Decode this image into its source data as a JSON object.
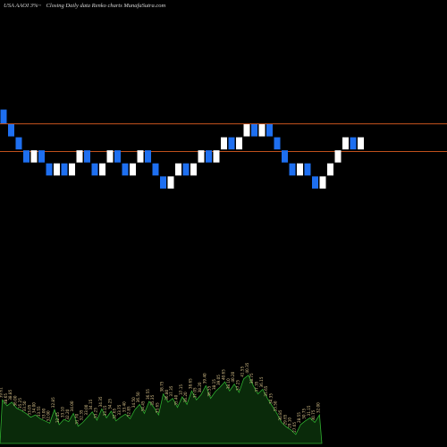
{
  "header": {
    "symbol": "USA AAOI 3%~",
    "description": "Closing Daily data Renko charts MunafaSutra.com"
  },
  "chart_data": {
    "type": "renko",
    "colors": {
      "background": "#000000",
      "up_brick": "#ffffff",
      "down_brick": "#1e6ff0",
      "level_line": "#c0501c",
      "volume_fill": "#0a2a0a",
      "volume_stroke": "#2fae2f",
      "volume_label": "#d8c28a"
    },
    "levels": [
      35.6,
      33.9
    ],
    "price_range": [
      24.0,
      41.0
    ],
    "bricks": [
      {
        "dir": "down",
        "open": 36.5,
        "close": 35.6
      },
      {
        "dir": "down",
        "open": 35.6,
        "close": 34.8
      },
      {
        "dir": "down",
        "open": 34.8,
        "close": 34.0
      },
      {
        "dir": "down",
        "open": 34.0,
        "close": 33.2
      },
      {
        "dir": "up",
        "open": 33.2,
        "close": 34.0
      },
      {
        "dir": "down",
        "open": 34.0,
        "close": 33.2
      },
      {
        "dir": "down",
        "open": 33.2,
        "close": 32.4
      },
      {
        "dir": "up",
        "open": 32.4,
        "close": 33.2
      },
      {
        "dir": "down",
        "open": 33.2,
        "close": 32.4
      },
      {
        "dir": "up",
        "open": 32.4,
        "close": 33.2
      },
      {
        "dir": "up",
        "open": 33.2,
        "close": 34.0
      },
      {
        "dir": "down",
        "open": 34.0,
        "close": 33.2
      },
      {
        "dir": "down",
        "open": 33.2,
        "close": 32.4
      },
      {
        "dir": "up",
        "open": 32.4,
        "close": 33.2
      },
      {
        "dir": "up",
        "open": 33.2,
        "close": 34.0
      },
      {
        "dir": "down",
        "open": 34.0,
        "close": 33.2
      },
      {
        "dir": "down",
        "open": 33.2,
        "close": 32.4
      },
      {
        "dir": "up",
        "open": 32.4,
        "close": 33.2
      },
      {
        "dir": "up",
        "open": 33.2,
        "close": 34.0
      },
      {
        "dir": "down",
        "open": 34.0,
        "close": 33.2
      },
      {
        "dir": "down",
        "open": 33.2,
        "close": 32.4
      },
      {
        "dir": "down",
        "open": 32.4,
        "close": 31.6
      },
      {
        "dir": "up",
        "open": 31.6,
        "close": 32.4
      },
      {
        "dir": "up",
        "open": 32.4,
        "close": 33.2
      },
      {
        "dir": "down",
        "open": 33.2,
        "close": 32.4
      },
      {
        "dir": "up",
        "open": 32.4,
        "close": 33.2
      },
      {
        "dir": "up",
        "open": 33.2,
        "close": 34.0
      },
      {
        "dir": "down",
        "open": 34.0,
        "close": 33.2
      },
      {
        "dir": "up",
        "open": 33.2,
        "close": 34.0
      },
      {
        "dir": "up",
        "open": 34.0,
        "close": 34.8
      },
      {
        "dir": "down",
        "open": 34.8,
        "close": 34.0
      },
      {
        "dir": "up",
        "open": 34.0,
        "close": 34.8
      },
      {
        "dir": "up",
        "open": 34.8,
        "close": 35.6
      },
      {
        "dir": "down",
        "open": 35.6,
        "close": 34.8
      },
      {
        "dir": "up",
        "open": 34.8,
        "close": 35.6
      },
      {
        "dir": "down",
        "open": 35.6,
        "close": 34.8
      },
      {
        "dir": "down",
        "open": 34.8,
        "close": 34.0
      },
      {
        "dir": "down",
        "open": 34.0,
        "close": 33.2
      },
      {
        "dir": "down",
        "open": 33.2,
        "close": 32.4
      },
      {
        "dir": "up",
        "open": 32.4,
        "close": 33.2
      },
      {
        "dir": "down",
        "open": 33.2,
        "close": 32.4
      },
      {
        "dir": "down",
        "open": 32.4,
        "close": 31.6
      },
      {
        "dir": "up",
        "open": 31.6,
        "close": 32.4
      },
      {
        "dir": "up",
        "open": 32.4,
        "close": 33.2
      },
      {
        "dir": "up",
        "open": 33.2,
        "close": 34.0
      },
      {
        "dir": "up",
        "open": 34.0,
        "close": 34.8
      },
      {
        "dir": "down",
        "open": 34.8,
        "close": 34.0
      },
      {
        "dir": "up",
        "open": 34.0,
        "close": 34.8
      }
    ],
    "volume": {
      "bars": [
        {
          "value": 0.58,
          "label": "39.61"
        },
        {
          "value": 0.5,
          "label": "38.65"
        },
        {
          "value": 0.55,
          "label": "38.85"
        },
        {
          "value": 0.47,
          "label": "36.00"
        },
        {
          "value": 0.44,
          "label": "35.25"
        },
        {
          "value": 0.4,
          "label": "33.50"
        },
        {
          "value": 0.35,
          "label": "33.05"
        },
        {
          "value": 0.38,
          "label": "34.00"
        },
        {
          "value": 0.33,
          "label": "33.55"
        },
        {
          "value": 0.3,
          "label": "33.00"
        },
        {
          "value": 0.27,
          "label": "32.00"
        },
        {
          "value": 0.45,
          "label": "32.85"
        },
        {
          "value": 0.25,
          "label": "32.45"
        },
        {
          "value": 0.32,
          "label": "33.10"
        },
        {
          "value": 0.29,
          "label": "32.20"
        },
        {
          "value": 0.4,
          "label": "34.00"
        },
        {
          "value": 0.23,
          "label": "31.70"
        },
        {
          "value": 0.28,
          "label": "32.35"
        },
        {
          "value": 0.35,
          "label": "33.00"
        },
        {
          "value": 0.42,
          "label": "34.15"
        },
        {
          "value": 0.31,
          "label": "33.25"
        },
        {
          "value": 0.46,
          "label": "34.35"
        },
        {
          "value": 0.34,
          "label": "33.15"
        },
        {
          "value": 0.43,
          "label": "34.25"
        },
        {
          "value": 0.3,
          "label": "32.65"
        },
        {
          "value": 0.35,
          "label": "33.75"
        },
        {
          "value": 0.39,
          "label": "33.40"
        },
        {
          "value": 0.33,
          "label": "32.85"
        },
        {
          "value": 0.45,
          "label": "34.50"
        },
        {
          "value": 0.52,
          "label": "36.50"
        },
        {
          "value": 0.4,
          "label": "34.45"
        },
        {
          "value": 0.56,
          "label": "36.55"
        },
        {
          "value": 0.48,
          "label": "35.35"
        },
        {
          "value": 0.38,
          "label": "33.65"
        },
        {
          "value": 0.66,
          "label": "38.75"
        },
        {
          "value": 0.55,
          "label": "36.80"
        },
        {
          "value": 0.6,
          "label": "37.35"
        },
        {
          "value": 0.48,
          "label": "35.40"
        },
        {
          "value": 0.62,
          "label": "37.15"
        },
        {
          "value": 0.52,
          "label": "36.20"
        },
        {
          "value": 0.7,
          "label": "38.65"
        },
        {
          "value": 0.58,
          "label": "37.05"
        },
        {
          "value": 0.65,
          "label": "38.20"
        },
        {
          "value": 0.77,
          "label": "39.40"
        },
        {
          "value": 0.6,
          "label": "36.55"
        },
        {
          "value": 0.69,
          "label": "38.15"
        },
        {
          "value": 0.75,
          "label": "39.05"
        },
        {
          "value": 0.82,
          "label": "40.65"
        },
        {
          "value": 0.7,
          "label": "38.10"
        },
        {
          "value": 0.79,
          "label": "40.20"
        },
        {
          "value": 0.68,
          "label": "37.25"
        },
        {
          "value": 0.86,
          "label": "41.55"
        },
        {
          "value": 0.91,
          "label": "40.35"
        },
        {
          "value": 0.77,
          "label": "38.75"
        },
        {
          "value": 0.66,
          "label": "37.35"
        },
        {
          "value": 0.72,
          "label": "36.15"
        },
        {
          "value": 0.6,
          "label": "35.65"
        },
        {
          "value": 0.5,
          "label": "34.35"
        },
        {
          "value": 0.4,
          "label": "33.50"
        },
        {
          "value": 0.28,
          "label": "30.85"
        },
        {
          "value": 0.22,
          "label": "29.65"
        },
        {
          "value": 0.18,
          "label": "29.10"
        },
        {
          "value": 0.12,
          "label": "27.65"
        },
        {
          "value": 0.25,
          "label": "28.55"
        },
        {
          "value": 0.3,
          "label": "30.75"
        },
        {
          "value": 0.34,
          "label": "31.15"
        },
        {
          "value": 0.28,
          "label": "30.75"
        },
        {
          "value": 0.38,
          "label": "32.00"
        }
      ]
    }
  }
}
